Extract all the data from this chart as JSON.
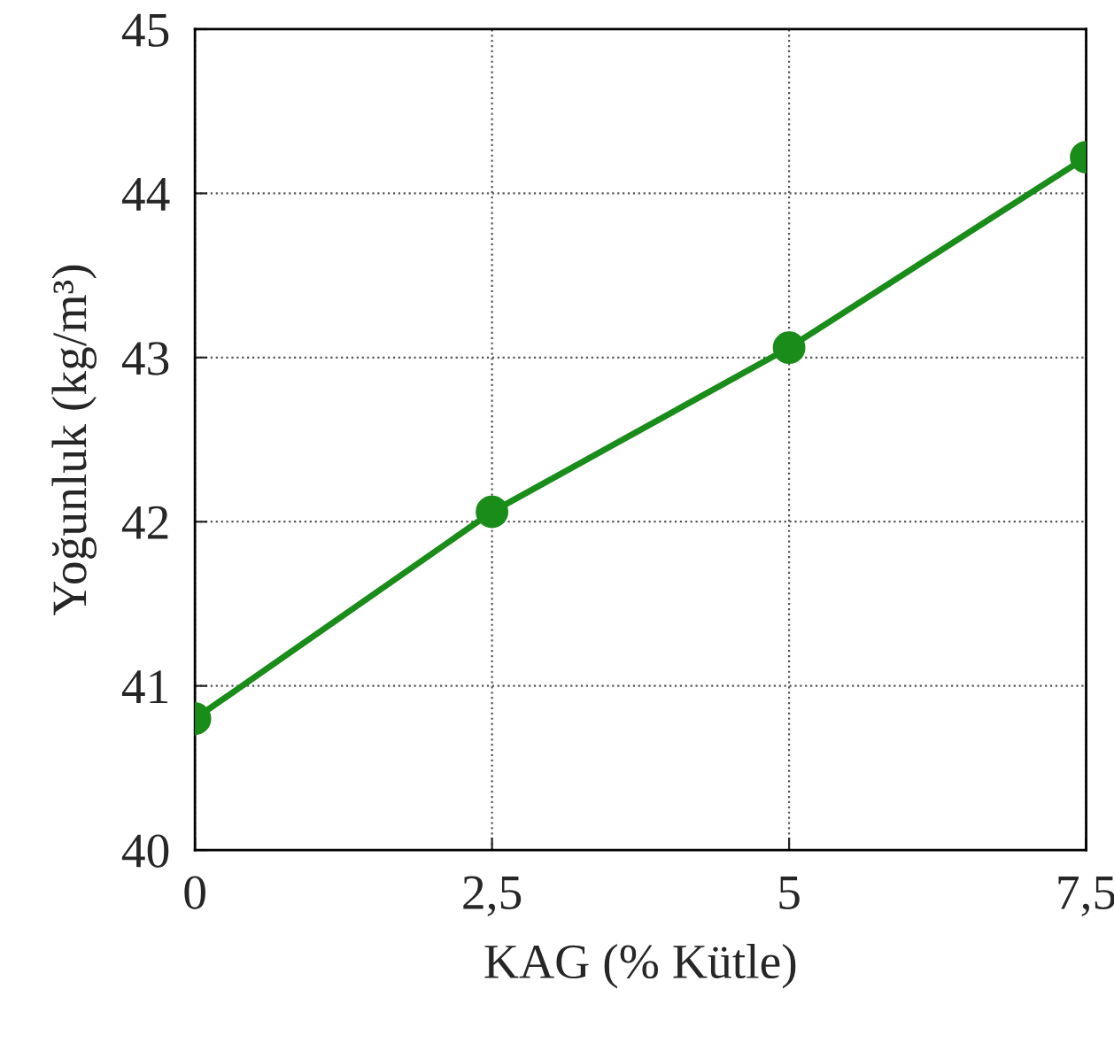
{
  "chart_data": {
    "type": "line",
    "xlabel": "KAG (% Kütle)",
    "ylabel": "Yoğunluk (kg/m³)",
    "x": [
      0,
      2.5,
      5,
      7.5
    ],
    "series": [
      {
        "color": "#1a8c1a",
        "values": [
          40.8,
          42.06,
          43.06,
          44.22
        ]
      }
    ],
    "xlim": [
      0,
      7.5
    ],
    "xticks": [
      0,
      {
        "value": 2.5,
        "label": "2,5"
      },
      5,
      {
        "value": 7.5,
        "label": "7,5"
      }
    ],
    "ylim": [
      40,
      45
    ],
    "yticks": [
      40,
      41,
      42,
      43,
      44,
      45
    ],
    "grid": true,
    "marker": "circle",
    "line_style": "solid"
  }
}
